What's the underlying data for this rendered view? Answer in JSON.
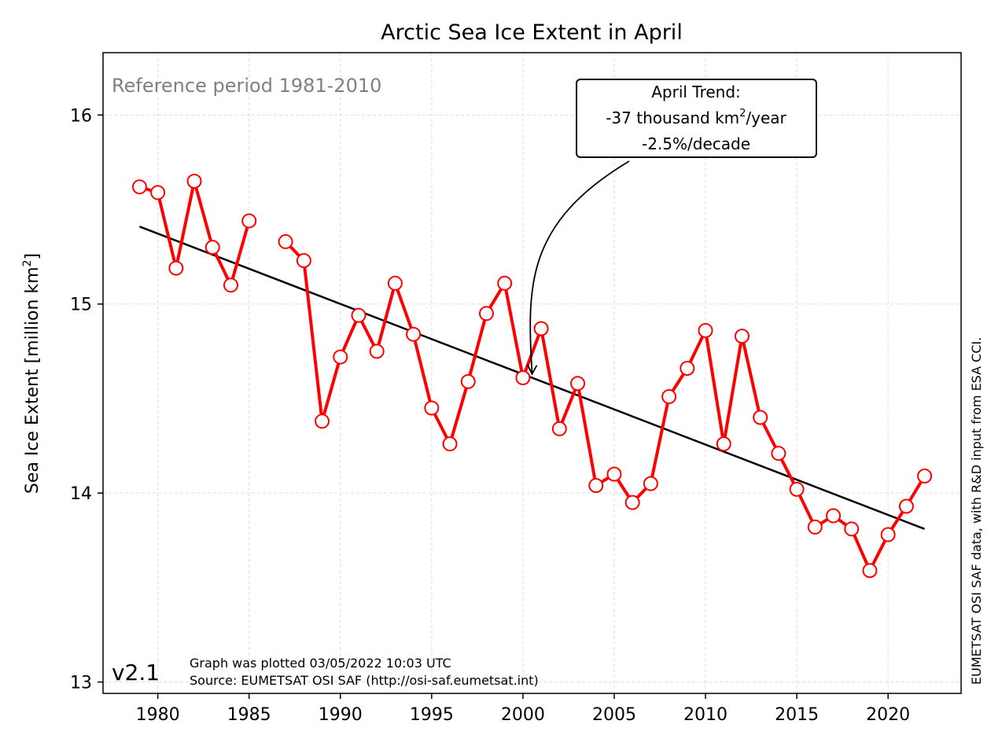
{
  "chart_data": {
    "type": "line",
    "title": "Arctic Sea Ice Extent in April",
    "ylabel": "Sea Ice Extent [million km",
    "ylabel_sup": "2",
    "ylabel_end": "]",
    "xlim": [
      1977,
      2024
    ],
    "ylim": [
      12.94,
      16.33
    ],
    "x_ticks": [
      1980,
      1985,
      1990,
      1995,
      2000,
      2005,
      2010,
      2015,
      2020
    ],
    "y_ticks": [
      13,
      14,
      15,
      16
    ],
    "grid": true,
    "series": [
      {
        "color": "#ff0000",
        "segments": [
          {
            "x": [
              1979,
              1980,
              1981,
              1982,
              1983,
              1984,
              1985
            ],
            "y": [
              15.62,
              15.59,
              15.19,
              15.65,
              15.3,
              15.1,
              15.44
            ]
          },
          {
            "x": [
              1987,
              1988,
              1989,
              1990,
              1991,
              1992,
              1993,
              1994,
              1995,
              1996,
              1997,
              1998,
              1999,
              2000,
              2001,
              2002,
              2003,
              2004,
              2005,
              2006,
              2007,
              2008,
              2009,
              2010,
              2011,
              2012,
              2013,
              2014,
              2015,
              2016,
              2017,
              2018,
              2019,
              2020,
              2021,
              2022
            ],
            "y": [
              15.33,
              15.23,
              14.38,
              14.72,
              14.94,
              14.75,
              15.11,
              14.84,
              14.45,
              14.26,
              14.59,
              14.95,
              15.11,
              14.61,
              14.87,
              14.34,
              14.58,
              14.04,
              14.1,
              13.95,
              14.05,
              14.51,
              14.66,
              14.86,
              14.26,
              14.83,
              14.4,
              14.21,
              14.02,
              13.82,
              13.88,
              13.81,
              13.59,
              13.78,
              13.93,
              14.09
            ]
          }
        ]
      }
    ],
    "trend": {
      "x": [
        1979,
        2022
      ],
      "y": [
        15.41,
        13.81
      ],
      "color": "#000000"
    },
    "annotation": {
      "line1": "April Trend:",
      "line2_pre": "-37 thousand km",
      "line2_sup": "2",
      "line2_post": "/year",
      "line3": "-2.5%/decade",
      "arrow_target": {
        "x": 2000.5,
        "y": 14.63
      }
    },
    "reference_text": "Reference period 1981-2010",
    "version": "v2.1",
    "footer_line1": "Graph was plotted 03/05/2022 10:03 UTC",
    "footer_line2": "Source: EUMETSAT OSI SAF (http://osi-saf.eumetsat.int)",
    "side_credit": "EUMETSAT OSI SAF data, with R&D input from ESA CCI."
  }
}
